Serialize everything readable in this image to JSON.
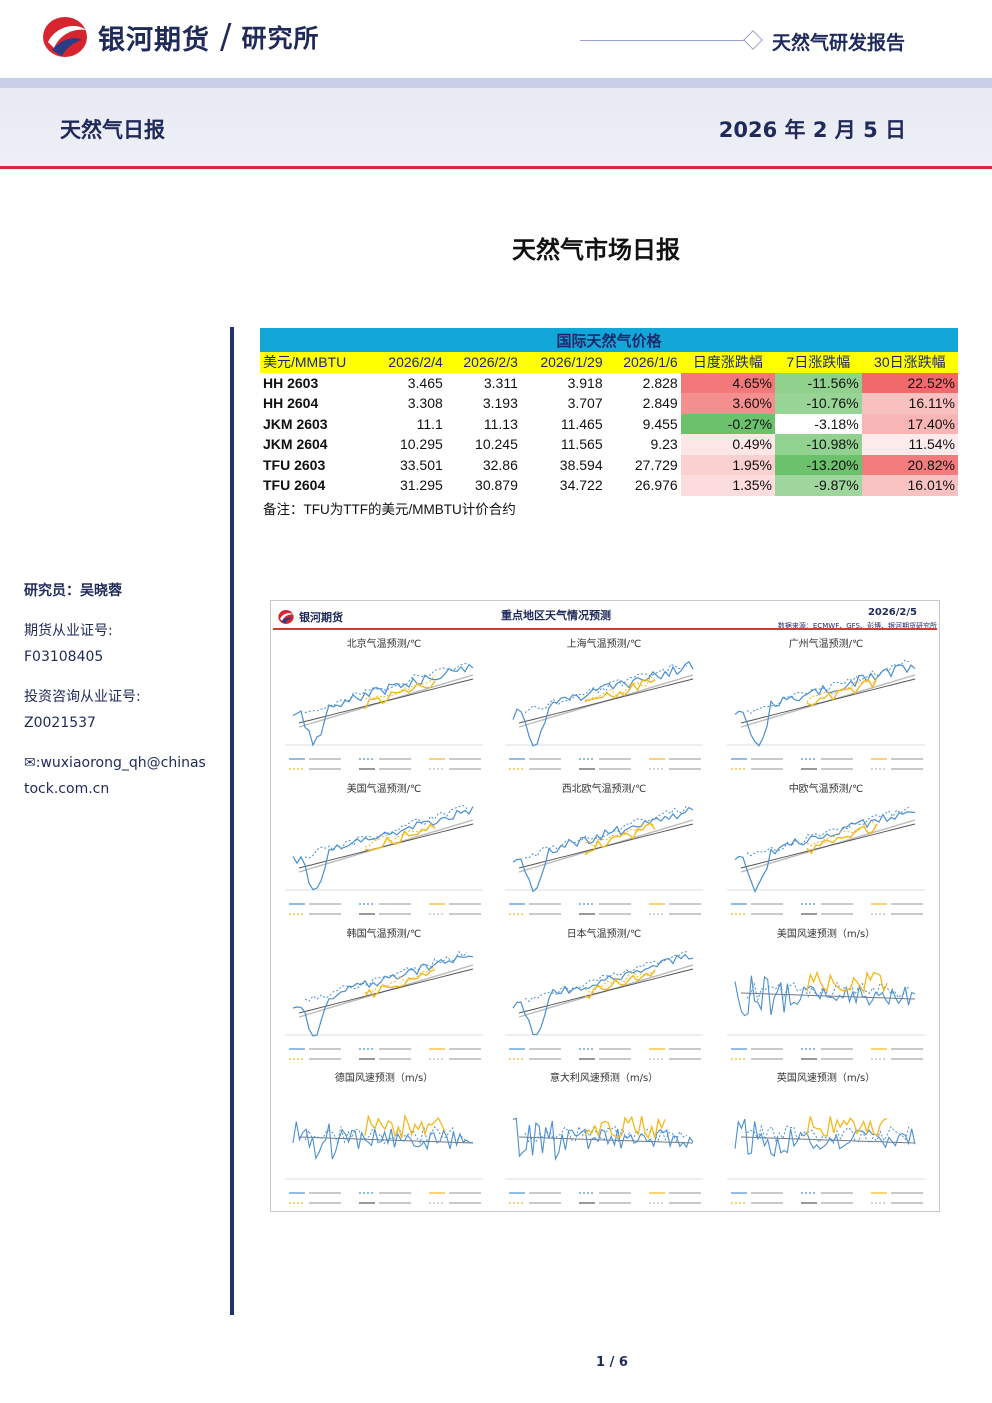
{
  "header": {
    "brand": "银河期货",
    "separator": "/",
    "institute": "研究所",
    "report_type": "天然气研发报告",
    "doc_title": "天然气日报",
    "doc_date": "2026 年 2 月 5 日"
  },
  "main_title": "天然气市场日报",
  "sidebar": {
    "analyst": "研究员：吴晓蓉",
    "license_label": "期货从业证号:",
    "license_no": "F03108405",
    "consult_label": "投资咨询从业证号:",
    "consult_no": "Z0021537",
    "email_line1": "✉:wuxiaorong_qh@chinas",
    "email_line2": "tock.com.cn"
  },
  "price_table": {
    "title": "国际天然气价格",
    "headers": [
      "美元/MMBTU",
      "2026/2/4",
      "2026/2/3",
      "2026/1/29",
      "2026/1/6",
      "日度涨跌幅",
      "7日涨跌幅",
      "30日涨跌幅"
    ],
    "rows": [
      {
        "code": "HH 2603",
        "v1": "3.465",
        "v2": "3.311",
        "v3": "3.918",
        "v4": "2.828",
        "d1": "4.65%",
        "d7": "-11.56%",
        "d30": "22.52%",
        "c1": "#f2787a",
        "c7": "#8fd18d",
        "c30": "#f06a6c"
      },
      {
        "code": "HH 2604",
        "v1": "3.308",
        "v2": "3.193",
        "v3": "3.707",
        "v4": "2.849",
        "d1": "3.60%",
        "d7": "-10.76%",
        "d30": "16.11%",
        "c1": "#f48f90",
        "c7": "#97d495",
        "c30": "#f9c0c0"
      },
      {
        "code": "JKM 2603",
        "v1": "11.1",
        "v2": "11.13",
        "v3": "11.465",
        "v4": "9.455",
        "d1": "-0.27%",
        "d7": "-3.18%",
        "d30": "17.40%",
        "c1": "#6cc26c",
        "c7": "#ffffff",
        "c30": "#f8b5b5"
      },
      {
        "code": "JKM 2604",
        "v1": "10.295",
        "v2": "10.245",
        "v3": "11.565",
        "v4": "9.23",
        "d1": "0.49%",
        "d7": "-10.98%",
        "d30": "11.54%",
        "c1": "#fde6e6",
        "c7": "#92d290",
        "c30": "#fdeaea"
      },
      {
        "code": "TFU 2603",
        "v1": "33.501",
        "v2": "32.86",
        "v3": "38.594",
        "v4": "27.729",
        "d1": "1.95%",
        "d7": "-13.20%",
        "d30": "20.82%",
        "c1": "#fbd0d0",
        "c7": "#6cc26c",
        "c30": "#f27b7d"
      },
      {
        "code": "TFU 2604",
        "v1": "31.295",
        "v2": "30.879",
        "v3": "34.722",
        "v4": "26.976",
        "d1": "1.35%",
        "d7": "-9.87%",
        "d30": "16.01%",
        "c1": "#fcdcdc",
        "c7": "#9fd69d",
        "c30": "#f9c2c2"
      }
    ],
    "note": "备注：TFU为TTF的美元/MMBTU计价合约"
  },
  "weather": {
    "logo": "银河期货",
    "title": "重点地区天气情况预测",
    "date": "2026/2/5",
    "source": "数据来源：ECMWF、GFS、彭博、银河期货研究所",
    "panels": [
      "北京气温预测/℃",
      "上海气温预测/℃",
      "广州气温预测/℃",
      "美国气温预测/℃",
      "西北欧气温预测/℃",
      "中欧气温预测/℃",
      "韩国气温预测/℃",
      "日本气温预测/℃",
      "美国风速预测（m/s）",
      "德国风速预测（m/s）",
      "意大利风速预测（m/s）",
      "英国风速预测（m/s）"
    ]
  },
  "page": "1 / 6"
}
